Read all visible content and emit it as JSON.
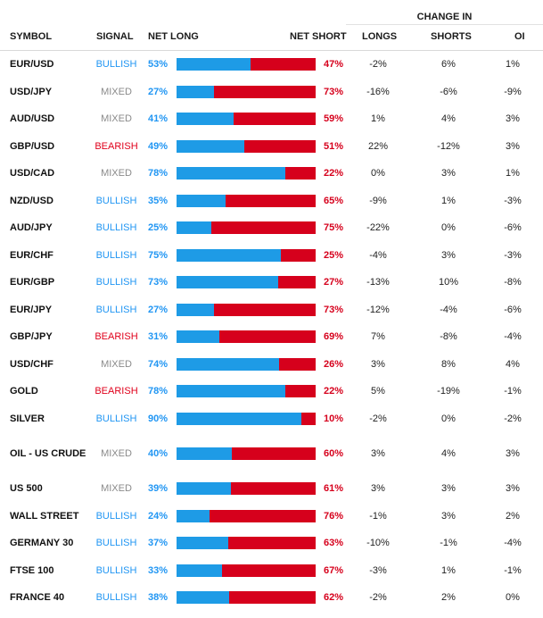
{
  "header": {
    "group_label": "CHANGE IN",
    "symbol": "SYMBOL",
    "signal": "SIGNAL",
    "net_long": "NET LONG",
    "net_short": "NET SHORT",
    "longs": "LONGS",
    "shorts": "SHORTS",
    "oi": "OI"
  },
  "colors": {
    "bullish": "#2196f3",
    "bearish": "#e0001b",
    "mixed": "#8a8a8a",
    "long_bar": "#1e9be6",
    "short_bar": "#d6001c"
  },
  "rows": [
    {
      "symbol": "EUR/USD",
      "signal": "BULLISH",
      "net_long": "53%",
      "net_long_value": 53,
      "net_short": "47%",
      "longs": "-2%",
      "shorts": "6%",
      "oi": "1%"
    },
    {
      "symbol": "USD/JPY",
      "signal": "MIXED",
      "net_long": "27%",
      "net_long_value": 27,
      "net_short": "73%",
      "longs": "-16%",
      "shorts": "-6%",
      "oi": "-9%"
    },
    {
      "symbol": "AUD/USD",
      "signal": "MIXED",
      "net_long": "41%",
      "net_long_value": 41,
      "net_short": "59%",
      "longs": "1%",
      "shorts": "4%",
      "oi": "3%"
    },
    {
      "symbol": "GBP/USD",
      "signal": "BEARISH",
      "net_long": "49%",
      "net_long_value": 49,
      "net_short": "51%",
      "longs": "22%",
      "shorts": "-12%",
      "oi": "3%"
    },
    {
      "symbol": "USD/CAD",
      "signal": "MIXED",
      "net_long": "78%",
      "net_long_value": 78,
      "net_short": "22%",
      "longs": "0%",
      "shorts": "3%",
      "oi": "1%"
    },
    {
      "symbol": "NZD/USD",
      "signal": "BULLISH",
      "net_long": "35%",
      "net_long_value": 35,
      "net_short": "65%",
      "longs": "-9%",
      "shorts": "1%",
      "oi": "-3%"
    },
    {
      "symbol": "AUD/JPY",
      "signal": "BULLISH",
      "net_long": "25%",
      "net_long_value": 25,
      "net_short": "75%",
      "longs": "-22%",
      "shorts": "0%",
      "oi": "-6%"
    },
    {
      "symbol": "EUR/CHF",
      "signal": "BULLISH",
      "net_long": "75%",
      "net_long_value": 75,
      "net_short": "25%",
      "longs": "-4%",
      "shorts": "3%",
      "oi": "-3%"
    },
    {
      "symbol": "EUR/GBP",
      "signal": "BULLISH",
      "net_long": "73%",
      "net_long_value": 73,
      "net_short": "27%",
      "longs": "-13%",
      "shorts": "10%",
      "oi": "-8%"
    },
    {
      "symbol": "EUR/JPY",
      "signal": "BULLISH",
      "net_long": "27%",
      "net_long_value": 27,
      "net_short": "73%",
      "longs": "-12%",
      "shorts": "-4%",
      "oi": "-6%"
    },
    {
      "symbol": "GBP/JPY",
      "signal": "BEARISH",
      "net_long": "31%",
      "net_long_value": 31,
      "net_short": "69%",
      "longs": "7%",
      "shorts": "-8%",
      "oi": "-4%"
    },
    {
      "symbol": "USD/CHF",
      "signal": "MIXED",
      "net_long": "74%",
      "net_long_value": 74,
      "net_short": "26%",
      "longs": "3%",
      "shorts": "8%",
      "oi": "4%"
    },
    {
      "symbol": "GOLD",
      "signal": "BEARISH",
      "net_long": "78%",
      "net_long_value": 78,
      "net_short": "22%",
      "longs": "5%",
      "shorts": "-19%",
      "oi": "-1%"
    },
    {
      "symbol": "SILVER",
      "signal": "BULLISH",
      "net_long": "90%",
      "net_long_value": 90,
      "net_short": "10%",
      "longs": "-2%",
      "shorts": "0%",
      "oi": "-2%"
    },
    {
      "symbol": "OIL - US CRUDE",
      "signal": "MIXED",
      "net_long": "40%",
      "net_long_value": 40,
      "net_short": "60%",
      "longs": "3%",
      "shorts": "4%",
      "oi": "3%"
    },
    {
      "symbol": "US 500",
      "signal": "MIXED",
      "net_long": "39%",
      "net_long_value": 39,
      "net_short": "61%",
      "longs": "3%",
      "shorts": "3%",
      "oi": "3%"
    },
    {
      "symbol": "WALL STREET",
      "signal": "BULLISH",
      "net_long": "24%",
      "net_long_value": 24,
      "net_short": "76%",
      "longs": "-1%",
      "shorts": "3%",
      "oi": "2%"
    },
    {
      "symbol": "GERMANY 30",
      "signal": "BULLISH",
      "net_long": "37%",
      "net_long_value": 37,
      "net_short": "63%",
      "longs": "-10%",
      "shorts": "-1%",
      "oi": "-4%"
    },
    {
      "symbol": "FTSE 100",
      "signal": "BULLISH",
      "net_long": "33%",
      "net_long_value": 33,
      "net_short": "67%",
      "longs": "-3%",
      "shorts": "1%",
      "oi": "-1%"
    },
    {
      "symbol": "FRANCE 40",
      "signal": "BULLISH",
      "net_long": "38%",
      "net_long_value": 38,
      "net_short": "62%",
      "longs": "-2%",
      "shorts": "2%",
      "oi": "0%"
    }
  ]
}
